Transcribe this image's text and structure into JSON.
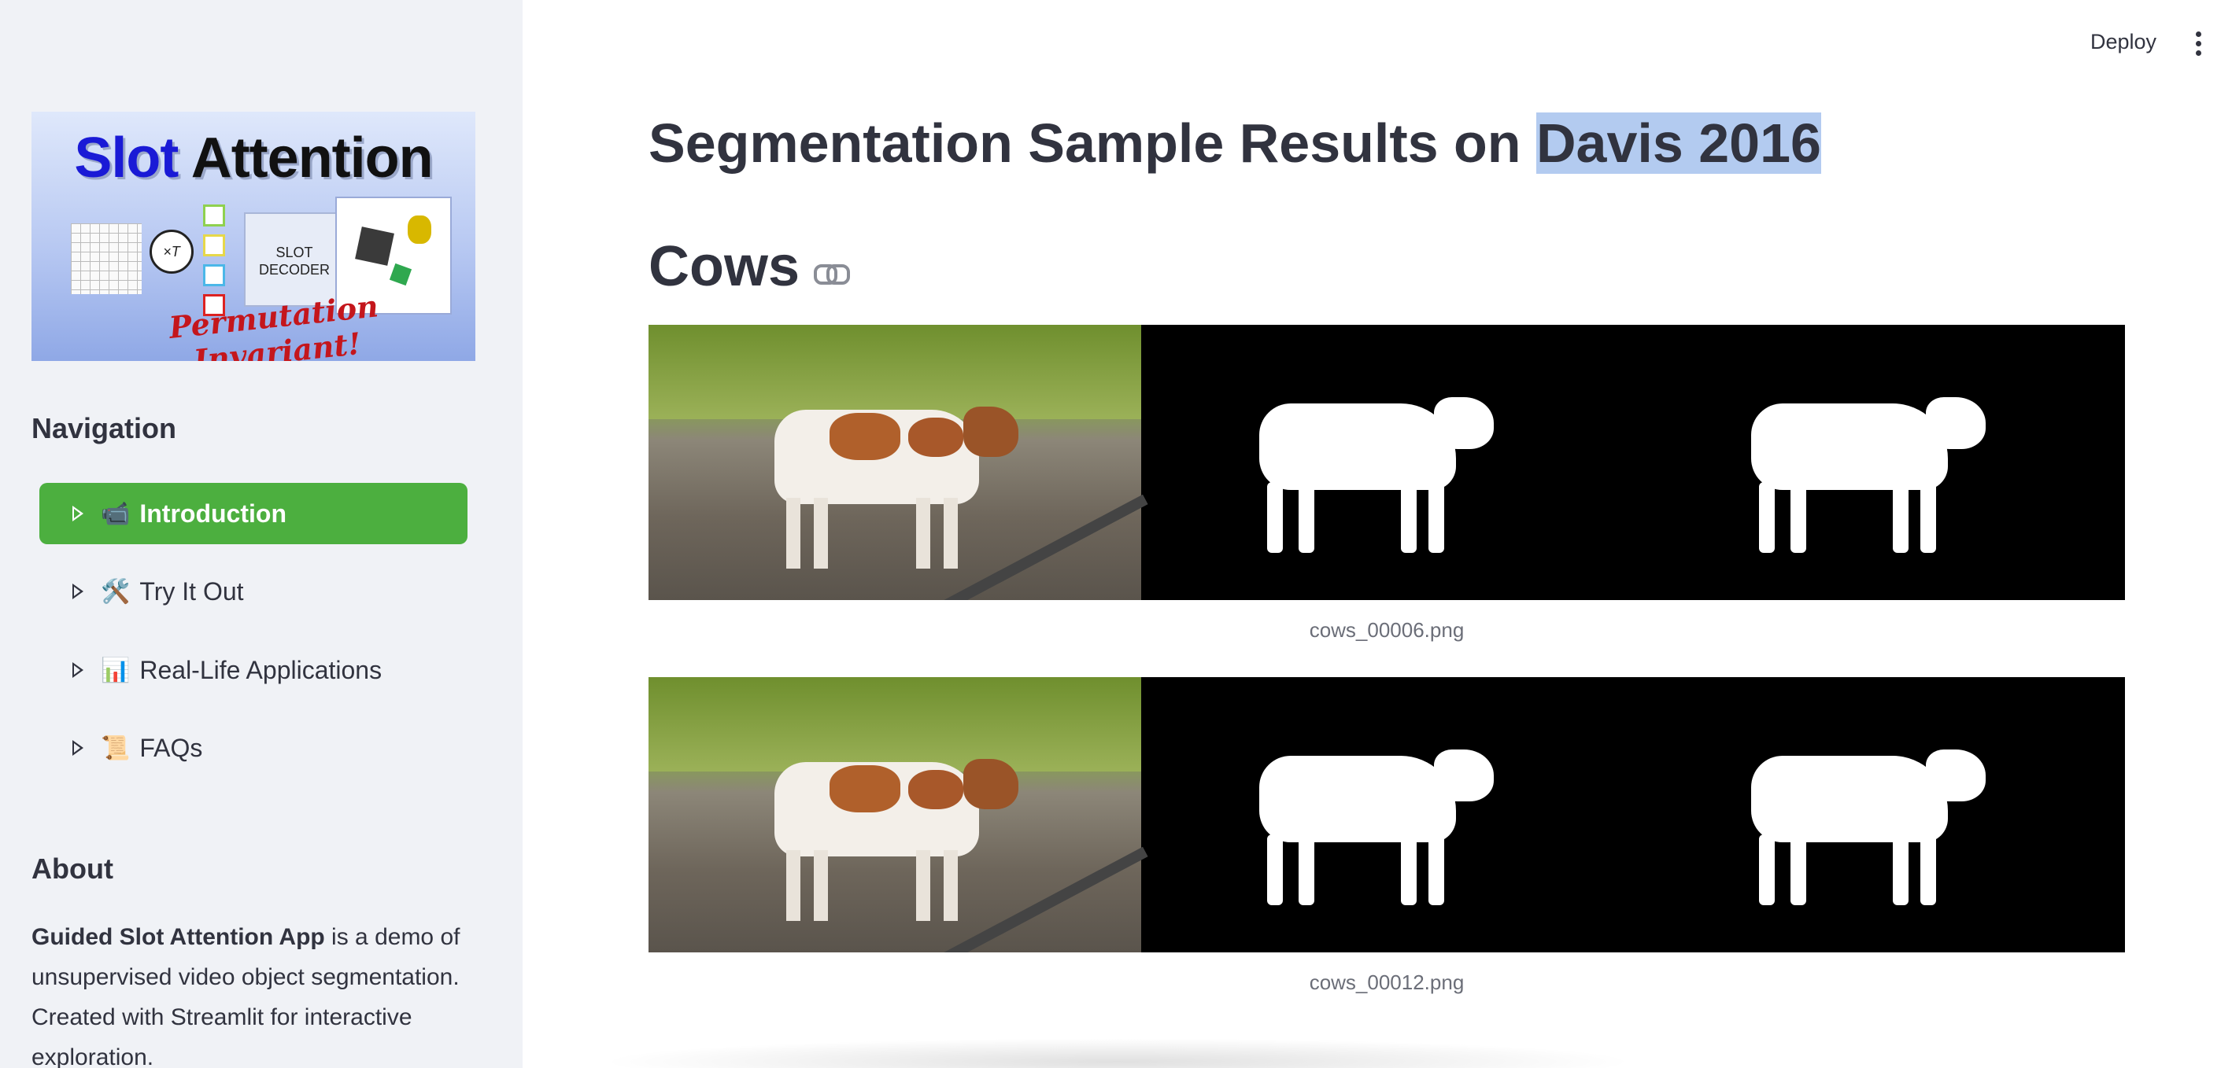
{
  "header": {
    "deploy_label": "Deploy",
    "menu_icon": "more-vert-icon"
  },
  "sidebar": {
    "logo": {
      "title_word1": "Slot",
      "title_word2": "Attention",
      "subtitle": "Permutation Invariant!",
      "loop_label": "×T",
      "decoder_label_1": "SLOT",
      "decoder_label_2": "DECODER"
    },
    "navigation_heading": "Navigation",
    "nav_items": [
      {
        "emoji": "📹",
        "label": "Introduction",
        "active": true
      },
      {
        "emoji": "🛠️",
        "label": "Try It Out",
        "active": false
      },
      {
        "emoji": "📊",
        "label": "Real-Life Applications",
        "active": false
      },
      {
        "emoji": "📜",
        "label": "FAQs",
        "active": false
      }
    ],
    "about_heading": "About",
    "about_bold": "Guided Slot Attention App",
    "about_text": " is a demo of unsupervised video object segmentation. Created with Streamlit for interactive exploration."
  },
  "main": {
    "title_prefix": "Segmentation Sample Results on ",
    "title_highlight": "Davis 2016",
    "section_title": "Cows",
    "samples": [
      {
        "caption": "cows_00006.png"
      },
      {
        "caption": "cows_00012.png"
      }
    ]
  },
  "colors": {
    "accent": "#4caf3f",
    "sidebar_bg": "#f0f2f6",
    "highlight": "#b3cbf0",
    "text": "#31333f"
  }
}
